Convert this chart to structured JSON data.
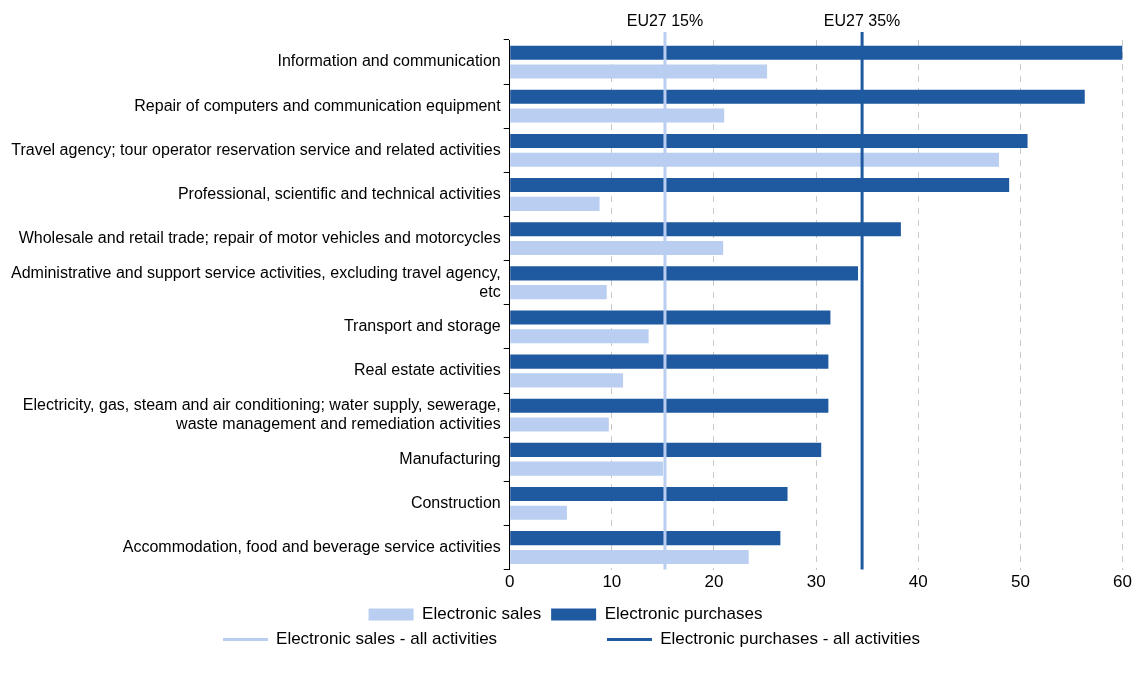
{
  "chart_data": {
    "type": "bar",
    "orientation": "horizontal",
    "categories": [
      "Information and communication",
      "Repair of computers and communication equipment",
      "Travel agency; tour operator reservation service and related activities",
      "Professional, scientific and technical activities",
      "Wholesale and retail trade; repair of motor vehicles and motorcycles",
      "Administrative and support service activities, excluding travel agency, etc",
      "Transport and storage",
      "Real estate activities",
      "Electricity, gas, steam and air conditioning; water supply, sewerage, waste management and remediation activities",
      "Manufacturing",
      "Construction",
      "Accommodation, food and beverage service activities"
    ],
    "series": [
      {
        "name": "Electronic purchases",
        "color": "#1f5aa0",
        "values": [
          60,
          56.3,
          50.7,
          48.9,
          38.3,
          34.1,
          31.4,
          31.2,
          31.2,
          30.5,
          27.2,
          26.5
        ]
      },
      {
        "name": "Electronic sales",
        "color": "#b9cef0",
        "values": [
          25.2,
          21.0,
          47.9,
          8.8,
          20.9,
          9.5,
          13.6,
          11.1,
          9.7,
          15.0,
          5.6,
          23.4
        ]
      }
    ],
    "xlim": [
      0,
      60
    ],
    "xticks": [
      0,
      10,
      20,
      30,
      40,
      50,
      60
    ],
    "ref_lines": [
      {
        "axis": "x",
        "value": 15.2,
        "label": "EU27 15%",
        "color": "#b9cef0"
      },
      {
        "axis": "x",
        "value": 34.5,
        "label": "EU27 35%",
        "color": "#1f5aa0"
      }
    ],
    "annotations": [
      "Electronic sales - all activities",
      "Electronic purchases - all activities"
    ],
    "grid": "x",
    "legend": "bottom"
  }
}
